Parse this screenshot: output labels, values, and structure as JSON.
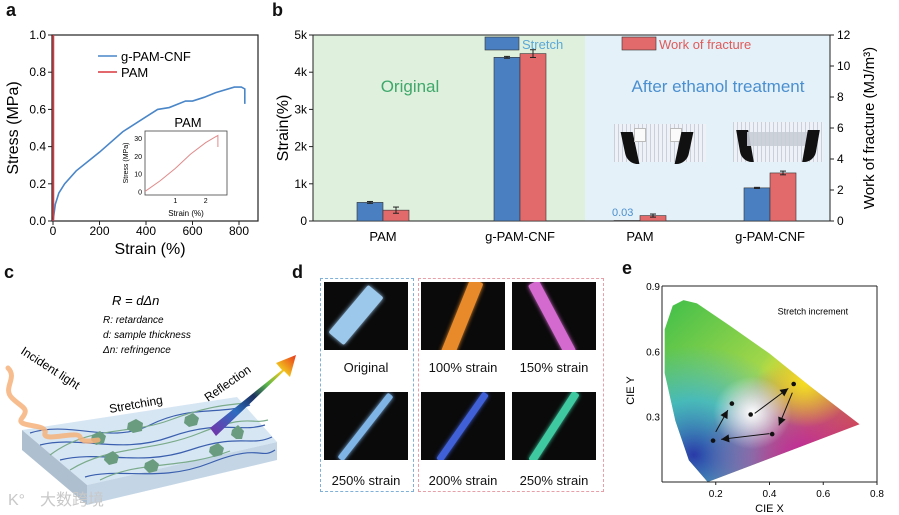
{
  "panels": {
    "a": "a",
    "b": "b",
    "c": "c",
    "d": "d",
    "e": "e"
  },
  "chart_data": [
    {
      "id": "a",
      "type": "line",
      "xlabel": "Strain (%)",
      "ylabel": "Stress (MPa)",
      "xlim": [
        -20,
        900
      ],
      "ylim": [
        0,
        1.0
      ],
      "xticks": [
        0,
        200,
        400,
        600,
        800
      ],
      "yticks": [
        0.0,
        0.2,
        0.4,
        0.6,
        0.8,
        1.0
      ],
      "ytick_labels": [
        "0.0",
        "0.2",
        "0.4",
        "0.6",
        "0.8",
        "1.0"
      ],
      "legend": "top-center",
      "series": [
        {
          "name": "g-PAM-CNF",
          "color": "#4a86c8",
          "x": [
            0,
            10,
            25,
            50,
            100,
            150,
            200,
            300,
            400,
            450,
            500,
            570,
            600,
            650,
            700,
            780,
            810,
            825,
            825
          ],
          "y": [
            0,
            0.09,
            0.15,
            0.2,
            0.27,
            0.32,
            0.37,
            0.48,
            0.56,
            0.6,
            0.61,
            0.645,
            0.645,
            0.665,
            0.69,
            0.72,
            0.72,
            0.71,
            0.63
          ]
        },
        {
          "name": "PAM",
          "color": "#d9363e",
          "x": [
            2,
            2
          ],
          "y": [
            0,
            1.0
          ]
        }
      ],
      "inset": {
        "title": "PAM",
        "xlabel": "Strain (%)",
        "ylabel": "Stress (MPa)",
        "xlim": [
          0,
          2.7
        ],
        "ylim": [
          -2,
          34
        ],
        "xticks": [
          1,
          2
        ],
        "yticks": [
          0,
          10,
          20,
          30
        ],
        "series": [
          {
            "name": "PAM",
            "color": "#e08a8a",
            "x": [
              0,
              0.5,
              1.0,
              1.5,
              2.0,
              2.3,
              2.4,
              2.4
            ],
            "y": [
              0,
              6,
              13,
              21,
              27.5,
              30.5,
              31.5,
              25
            ]
          }
        ]
      }
    },
    {
      "id": "b",
      "type": "bar",
      "categories": [
        "PAM",
        "g-PAM-CNF",
        "PAM",
        "g-PAM-CNF"
      ],
      "groups": [
        "Original",
        "After ethanol treatment"
      ],
      "ylabel": "Strain(%)",
      "y2label": "Work of fracture (MJ/m³)",
      "ylim": [
        0,
        5000
      ],
      "y2lim": [
        0,
        12
      ],
      "yticks": [
        0,
        1000,
        2000,
        3000,
        4000,
        5000
      ],
      "ytick_labels": [
        "0",
        "1k",
        "2k",
        "3k",
        "4k",
        "5k"
      ],
      "y2ticks": [
        0,
        2,
        4,
        6,
        8,
        10,
        12
      ],
      "legend": "top-center",
      "series": [
        {
          "name": "Stretch",
          "axis": "left",
          "color": "#4a7fc1",
          "values": [
            500,
            4400,
            0.03,
            890
          ],
          "errors": [
            25,
            25,
            0,
            15
          ]
        },
        {
          "name": "Work of fracture",
          "axis": "right",
          "color": "#e26a6a",
          "values": [
            0.7,
            10.8,
            0.35,
            3.1
          ],
          "errors": [
            0.2,
            0.25,
            0.1,
            0.12
          ]
        }
      ],
      "annotations": [
        "0.03"
      ],
      "region_colors": {
        "original": "#dff0dd",
        "ethanol": "#e4f1f8"
      },
      "region_text_colors": {
        "original": "#3fa86b",
        "ethanol": "#4a8fd0"
      }
    },
    {
      "id": "e",
      "type": "scatter",
      "xlabel": "CIE X",
      "ylabel": "CIE Y",
      "xlim": [
        0,
        0.8
      ],
      "ylim": [
        0,
        0.9
      ],
      "xticks": [
        0.2,
        0.4,
        0.6,
        0.8
      ],
      "yticks": [
        0.3,
        0.6,
        0.9
      ],
      "annotation": "Stretch increment",
      "points": {
        "x": [
          0.19,
          0.26,
          0.33,
          0.49,
          0.41
        ],
        "y": [
          0.19,
          0.36,
          0.31,
          0.45,
          0.22
        ]
      },
      "arrows": [
        {
          "from": [
            0.2,
            0.23
          ],
          "to": [
            0.245,
            0.33
          ]
        },
        {
          "from": [
            0.345,
            0.315
          ],
          "to": [
            0.47,
            0.43
          ]
        },
        {
          "from": [
            0.485,
            0.41
          ],
          "to": [
            0.435,
            0.26
          ]
        },
        {
          "from": [
            0.4,
            0.222
          ],
          "to": [
            0.22,
            0.196
          ]
        }
      ]
    }
  ],
  "panel_c": {
    "formula": "R = dΔn",
    "legend": [
      "R: retardance",
      "d: sample thickness",
      "Δn: refringence"
    ],
    "labels": {
      "incident": "Incident light",
      "stretching": "Stretching",
      "reflection": "Reflection"
    },
    "watermark": "大数跨境"
  },
  "panel_d": {
    "images": [
      {
        "label": "Original",
        "strip": "#9cc8ec"
      },
      {
        "label": "100% strain",
        "strip": "#e88a2a"
      },
      {
        "label": "150% strain",
        "strip": "#d46ad0"
      },
      {
        "label": "250% strain",
        "strip": "#7fb4e6"
      },
      {
        "label": "200% strain",
        "strip": "#4060d8"
      },
      {
        "label": "250% strain",
        "strip": "#3fc9a0"
      }
    ],
    "box_colors": {
      "blue": "#7fb0d8",
      "red": "#e8a0a8"
    }
  }
}
